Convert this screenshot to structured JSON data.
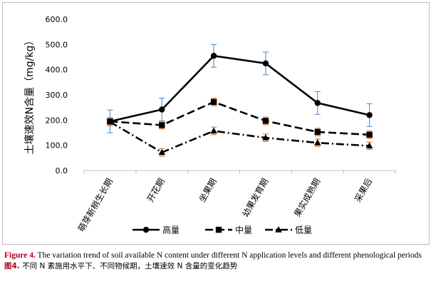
{
  "chart_data": {
    "type": "line",
    "ylabel": "土壤速效N含量（mg/kg）",
    "xlabel": "",
    "ylim": [
      0,
      600
    ],
    "yticks": [
      "0.0",
      "100.0",
      "200.0",
      "300.0",
      "400.0",
      "500.0",
      "600.0"
    ],
    "categories": [
      "萌芽新梢生长期",
      "开花期",
      "坐果期",
      "幼果发育期",
      "果实成熟期",
      "采果后"
    ],
    "grid": false,
    "legend_position": "bottom",
    "series": [
      {
        "name": "高量",
        "marker": "circle",
        "dash": "solid",
        "values": [
          195,
          242,
          455,
          425,
          268,
          220
        ],
        "errors": [
          45,
          45,
          45,
          45,
          45,
          45
        ]
      },
      {
        "name": "中量",
        "marker": "square",
        "dash": "dashed",
        "values": [
          195,
          180,
          272,
          197,
          153,
          142
        ],
        "errors": [
          15,
          15,
          15,
          15,
          15,
          15
        ]
      },
      {
        "name": "低量",
        "marker": "triangle",
        "dash": "dashdot",
        "values": [
          193,
          72,
          157,
          130,
          110,
          98
        ],
        "errors": [
          15,
          15,
          15,
          15,
          15,
          15
        ]
      }
    ],
    "error_bar_colors": {
      "high": "#5b9bd5",
      "low": "#ed7d31"
    }
  },
  "caption": {
    "en_label": "Figure 4.",
    "en_text": " The variation trend of soil available N content under different N application levels and different phenological periods",
    "cn_label": "图4.",
    "cn_text": " 不同 N 素施用水平下、不同物候期，土壤速效 N 含量的变化趋势"
  }
}
